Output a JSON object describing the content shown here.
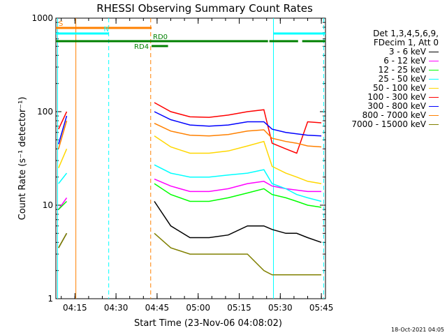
{
  "chart_data": {
    "type": "line",
    "title": "RHESSI Observing Summary Count Rates",
    "xlabel": "Start Time (23-Nov-06 04:08:02)",
    "ylabel": "Count Rate (s⁻¹ detector⁻¹)",
    "y_scale": "log",
    "ylim": [
      1,
      1000
    ],
    "xlim": [
      "04:08:02",
      "05:46:30"
    ],
    "x_ticks": [
      "04:15",
      "04:30",
      "04:45",
      "05:00",
      "05:15",
      "05:30",
      "05:45"
    ],
    "y_ticks": [
      "1",
      "10",
      "100",
      "1000"
    ],
    "legend_header": [
      "Det 1,3,4,5,6,9,",
      "FDecim 1, Att 0"
    ],
    "legend_position": "right",
    "x": [
      "04:09",
      "04:12",
      "04:14",
      "04:44",
      "04:50",
      "04:57",
      "05:04",
      "05:11",
      "05:18",
      "05:24",
      "05:27",
      "05:32",
      "05:36",
      "05:40",
      "05:45"
    ],
    "series": [
      {
        "name": "3 - 6 keV",
        "color": "#000000",
        "values": [
          3.5,
          5,
          null,
          11,
          6,
          4.5,
          4.5,
          4.8,
          6,
          6,
          5.5,
          5,
          5,
          4.5,
          4
        ]
      },
      {
        "name": "6 - 12 keV",
        "color": "#ff00ff",
        "values": [
          9,
          12,
          null,
          19,
          16,
          14,
          14,
          15,
          17,
          18,
          16,
          15,
          14.5,
          14,
          14
        ]
      },
      {
        "name": "12 - 25 keV",
        "color": "#00ff00",
        "values": [
          9,
          11,
          null,
          17,
          13,
          11,
          11,
          12,
          13.5,
          15,
          13,
          12,
          11,
          10,
          9.5
        ]
      },
      {
        "name": "25 - 50 keV",
        "color": "#00ffff",
        "values": [
          17,
          22,
          null,
          27,
          22,
          20,
          20,
          21,
          22,
          24,
          17,
          15,
          13,
          12,
          11
        ]
      },
      {
        "name": "50 - 100 keV",
        "color": "#ffd700",
        "values": [
          25,
          40,
          null,
          55,
          42,
          36,
          36,
          38,
          43,
          48,
          26,
          22,
          20,
          18,
          17
        ]
      },
      {
        "name": "100 - 300 keV",
        "color": "#ff0000",
        "values": [
          65,
          100,
          null,
          125,
          100,
          88,
          87,
          92,
          100,
          105,
          46,
          40,
          36,
          78,
          76
        ]
      },
      {
        "name": "300 - 800 keV",
        "color": "#0000ff",
        "values": [
          45,
          90,
          null,
          100,
          82,
          72,
          70,
          72,
          78,
          78,
          65,
          60,
          58,
          56,
          55
        ]
      },
      {
        "name": "800 - 7000 keV",
        "color": "#ff8000",
        "values": [
          40,
          80,
          null,
          75,
          62,
          56,
          55,
          57,
          62,
          64,
          52,
          48,
          46,
          43,
          42
        ]
      },
      {
        "name": "7000 - 15000 keV",
        "color": "#808000",
        "values": [
          3.5,
          5,
          null,
          5,
          3.5,
          3,
          3,
          3,
          3,
          2,
          1.8,
          1.8,
          1.8,
          1.8,
          1.8
        ]
      }
    ],
    "vertical_markers": [
      {
        "time": "04:08:40",
        "color": "#00ffff",
        "style": "solid"
      },
      {
        "time": "04:15:20",
        "color": "#ff8000",
        "style": "solid"
      },
      {
        "time": "04:27:20",
        "color": "#00ffff",
        "style": "dashed"
      },
      {
        "time": "04:42:40",
        "color": "#ff8000",
        "style": "dashed"
      },
      {
        "time": "05:27:30",
        "color": "#00ffff",
        "style": "solid"
      },
      {
        "time": "05:45:50",
        "color": "#00ffff",
        "style": "dashed"
      }
    ],
    "flag_bars": [
      {
        "label": "S",
        "color": "#ff8000",
        "segments": [
          [
            "04:08:02",
            "04:43:00"
          ]
        ]
      },
      {
        "label": "N",
        "color": "#00ffff",
        "segments": [
          [
            "04:08:02",
            "04:27:20"
          ],
          [
            "05:27:30",
            "05:46:30"
          ]
        ]
      },
      {
        "label": "RD0",
        "color": "#008000",
        "segments": [
          [
            "04:08:02",
            "05:25:30"
          ],
          [
            "05:26:00",
            "05:36:30"
          ],
          [
            "05:38:00",
            "05:46:30"
          ]
        ]
      },
      {
        "label": "RD4",
        "color": "#008000",
        "segments": [
          [
            "04:43:00",
            "04:49:00"
          ]
        ]
      }
    ]
  },
  "footer_date": "18-Oct-2021 04:05"
}
